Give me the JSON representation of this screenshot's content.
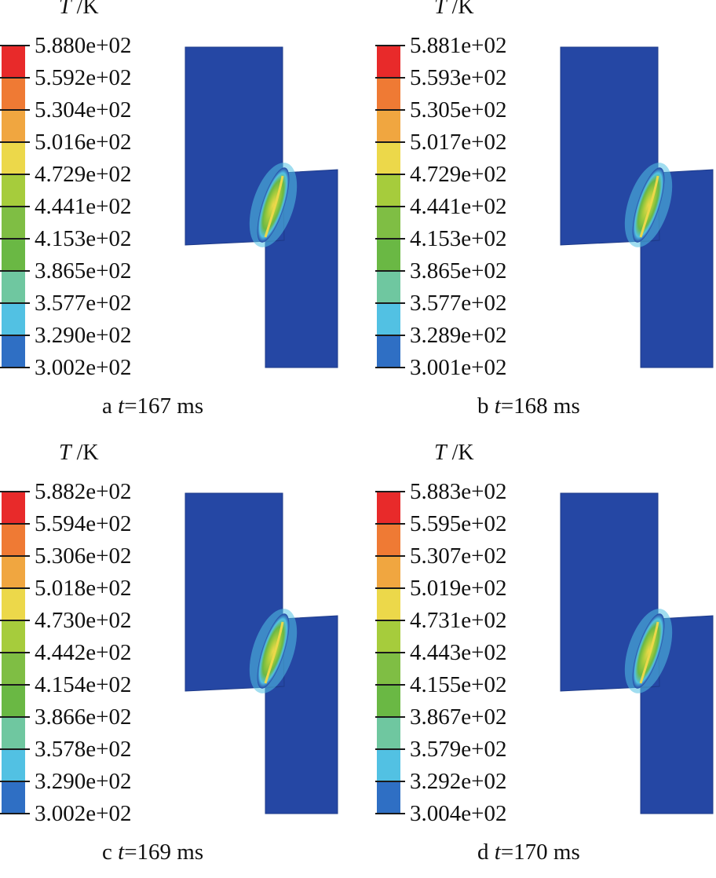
{
  "figure": {
    "unit_symbol": "T",
    "unit_suffix": "/K",
    "colormap": [
      "#2547a4",
      "#2f6fc4",
      "#52c1e3",
      "#6fc7a0",
      "#6ab844",
      "#7fbe44",
      "#a6cc3c",
      "#ecd84a",
      "#f0a640",
      "#ef7a34",
      "#e82a2a"
    ],
    "panels": [
      {
        "letter": "a",
        "time_label": "t",
        "time_value": "=167 ms",
        "ticks": [
          "5.880e+02",
          "5.592e+02",
          "5.304e+02",
          "5.016e+02",
          "4.729e+02",
          "4.441e+02",
          "4.153e+02",
          "3.865e+02",
          "3.577e+02",
          "3.290e+02",
          "3.002e+02"
        ]
      },
      {
        "letter": "b",
        "time_label": "t",
        "time_value": "=168 ms",
        "ticks": [
          "5.881e+02",
          "5.593e+02",
          "5.305e+02",
          "5.017e+02",
          "4.729e+02",
          "4.441e+02",
          "4.153e+02",
          "3.865e+02",
          "3.577e+02",
          "3.289e+02",
          "3.001e+02"
        ]
      },
      {
        "letter": "c",
        "time_label": "t",
        "time_value": "=169 ms",
        "ticks": [
          "5.882e+02",
          "5.594e+02",
          "5.306e+02",
          "5.018e+02",
          "4.730e+02",
          "4.442e+02",
          "4.154e+02",
          "3.866e+02",
          "3.578e+02",
          "3.290e+02",
          "3.002e+02"
        ]
      },
      {
        "letter": "d",
        "time_label": "t",
        "time_value": "=170 ms",
        "ticks": [
          "5.883e+02",
          "5.595e+02",
          "5.307e+02",
          "5.019e+02",
          "4.731e+02",
          "4.443e+02",
          "4.155e+02",
          "3.867e+02",
          "3.579e+02",
          "3.292e+02",
          "3.004e+02"
        ]
      }
    ]
  }
}
